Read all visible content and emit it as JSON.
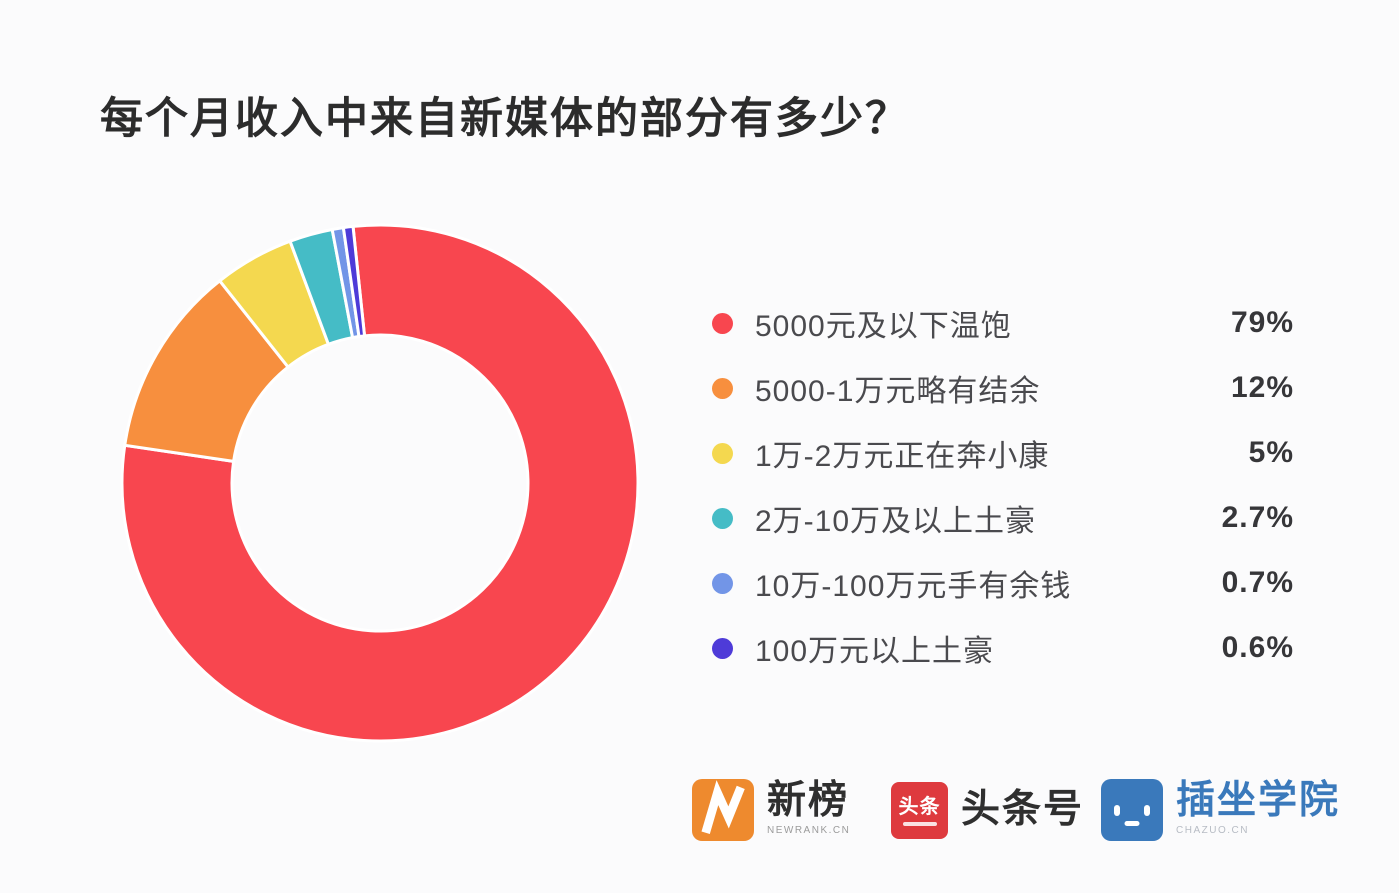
{
  "page": {
    "background": "#FBFBFC"
  },
  "title": "每个月收入中来自新媒体的部分有多少？",
  "chart_data": {
    "type": "pie",
    "donut": true,
    "donut_hole_ratio": 0.57,
    "start_angle_deg": -96,
    "direction": "clockwise",
    "legend_position": "right",
    "title": "每个月收入中来自新媒体的部分有多少？",
    "series": [
      {
        "label": "5000元及以下温饱",
        "value": 79,
        "display": "79%",
        "color": "#F8464F"
      },
      {
        "label": "5000-1万元略有结余",
        "value": 12,
        "display": "12%",
        "color": "#F78F3E"
      },
      {
        "label": "1万-2万元正在奔小康",
        "value": 5,
        "display": "5%",
        "color": "#F4D84F"
      },
      {
        "label": "2万-10万及以上土豪",
        "value": 2.7,
        "display": "2.7%",
        "color": "#45BCC6"
      },
      {
        "label": "10万-100万元手有余钱",
        "value": 0.7,
        "display": "0.7%",
        "color": "#7295E7"
      },
      {
        "label": "100万元以上土豪",
        "value": 0.6,
        "display": "0.6%",
        "color": "#4E3BD8"
      }
    ]
  },
  "footer": {
    "logos": [
      {
        "name": "新榜",
        "subtext": "NEWRANK.CN",
        "color": "#EE8A2E",
        "icon": "newrank-lightning-n"
      },
      {
        "name": "头条号",
        "badge_text": "头条",
        "color": "#DE3A3E",
        "icon": "toutiao-badge"
      },
      {
        "name": "插坐学院",
        "subtext": "CHAZUO.CN",
        "color": "#3A79BB",
        "icon": "chazuo-face"
      }
    ]
  }
}
